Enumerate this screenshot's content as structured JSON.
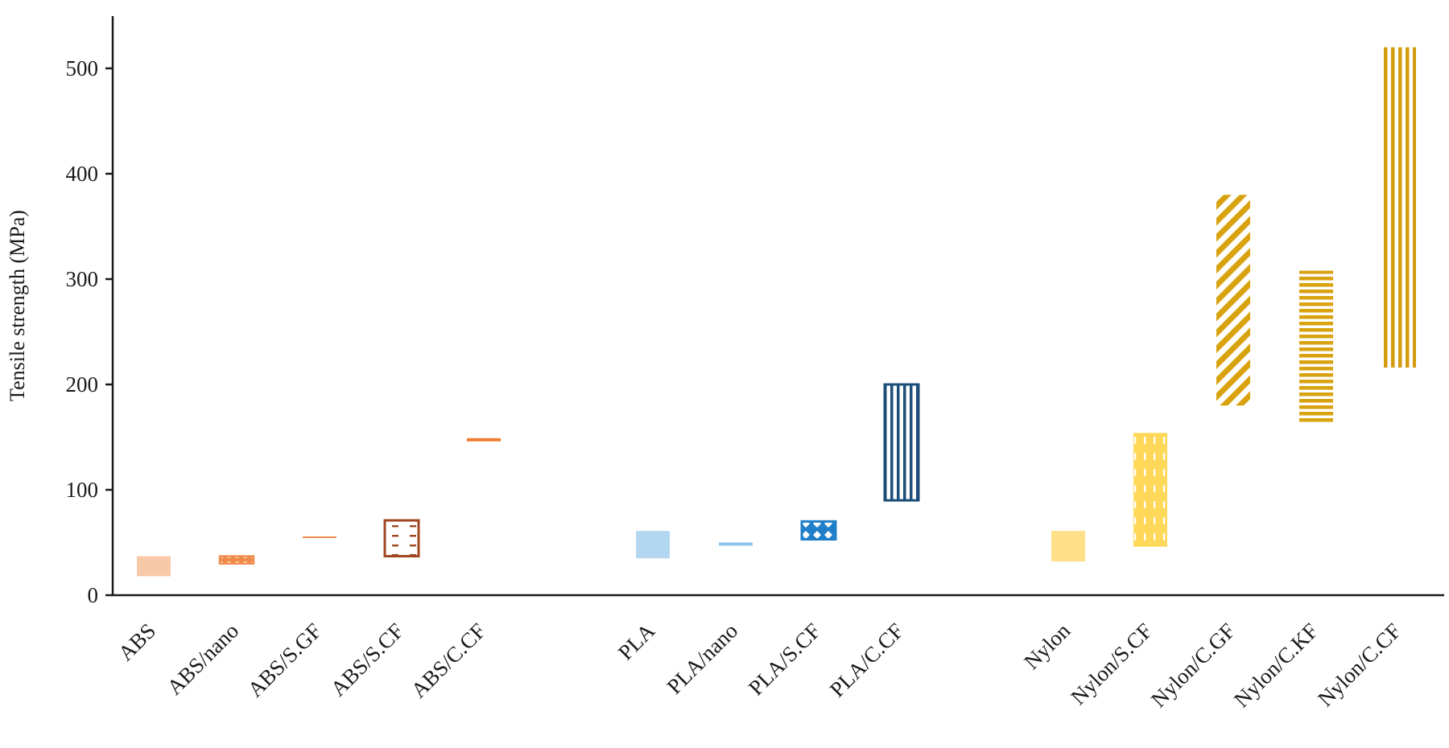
{
  "chart_data": {
    "type": "bar",
    "subtype": "floating-range",
    "title": "",
    "xlabel": "",
    "ylabel": "Tensile strength (MPa)",
    "ylim": [
      0,
      550
    ],
    "yticks": [
      0,
      100,
      200,
      300,
      400,
      500
    ],
    "grid": false,
    "legend": "none",
    "groups": [
      {
        "name": "ABS",
        "categories": [
          "ABS",
          "ABS/nano",
          "ABS/S.GF",
          "ABS/S.CF",
          "ABS/C.CF"
        ]
      },
      {
        "name": "PLA",
        "categories": [
          "PLA",
          "PLA/nano",
          "PLA/S.CF",
          "PLA/C.CF"
        ]
      },
      {
        "name": "Nylon",
        "categories": [
          "Nylon",
          "Nylon/S.CF",
          "Nylon/C.GF",
          "Nylon/C.KF",
          "Nylon/C.CF"
        ]
      }
    ],
    "bars": [
      {
        "category": "ABS",
        "min": 18,
        "max": 37,
        "color": "#f8c9a8",
        "pattern": "solid"
      },
      {
        "category": "ABS/nano",
        "min": 30,
        "max": 37,
        "color": "#ef8a4a",
        "pattern": "hatch-dash-outline"
      },
      {
        "category": "ABS/S.GF",
        "min": 54,
        "max": 55,
        "color": "#ef8a4a",
        "pattern": "thin-line"
      },
      {
        "category": "ABS/S.CF",
        "min": 37,
        "max": 71,
        "color": "#a0451f",
        "pattern": "dash-outline"
      },
      {
        "category": "ABS/C.CF",
        "min": 146,
        "max": 149,
        "color": "#f07b2c",
        "pattern": "solid"
      },
      {
        "category": "PLA",
        "min": 35,
        "max": 61,
        "color": "#b3d7f0",
        "pattern": "solid"
      },
      {
        "category": "PLA/nano",
        "min": 47,
        "max": 50,
        "color": "#8cc4ec",
        "pattern": "solid"
      },
      {
        "category": "PLA/S.CF",
        "min": 53,
        "max": 70,
        "color": "#1f7fc9",
        "pattern": "diamond-outline"
      },
      {
        "category": "PLA/C.CF",
        "min": 90,
        "max": 200,
        "color": "#1d4e7a",
        "pattern": "vertical-outline"
      },
      {
        "category": "Nylon",
        "min": 32,
        "max": 61,
        "color": "#ffe08a",
        "pattern": "solid"
      },
      {
        "category": "Nylon/S.CF",
        "min": 46,
        "max": 154,
        "color": "#ffd85a",
        "pattern": "dashed-vertical"
      },
      {
        "category": "Nylon/C.GF",
        "min": 180,
        "max": 380,
        "color": "#d9a20f",
        "pattern": "diagonal"
      },
      {
        "category": "Nylon/C.KF",
        "min": 164,
        "max": 308,
        "color": "#d9a20f",
        "pattern": "horizontal"
      },
      {
        "category": "Nylon/C.CF",
        "min": 216,
        "max": 520,
        "color": "#d39c0d",
        "pattern": "vertical"
      }
    ]
  }
}
